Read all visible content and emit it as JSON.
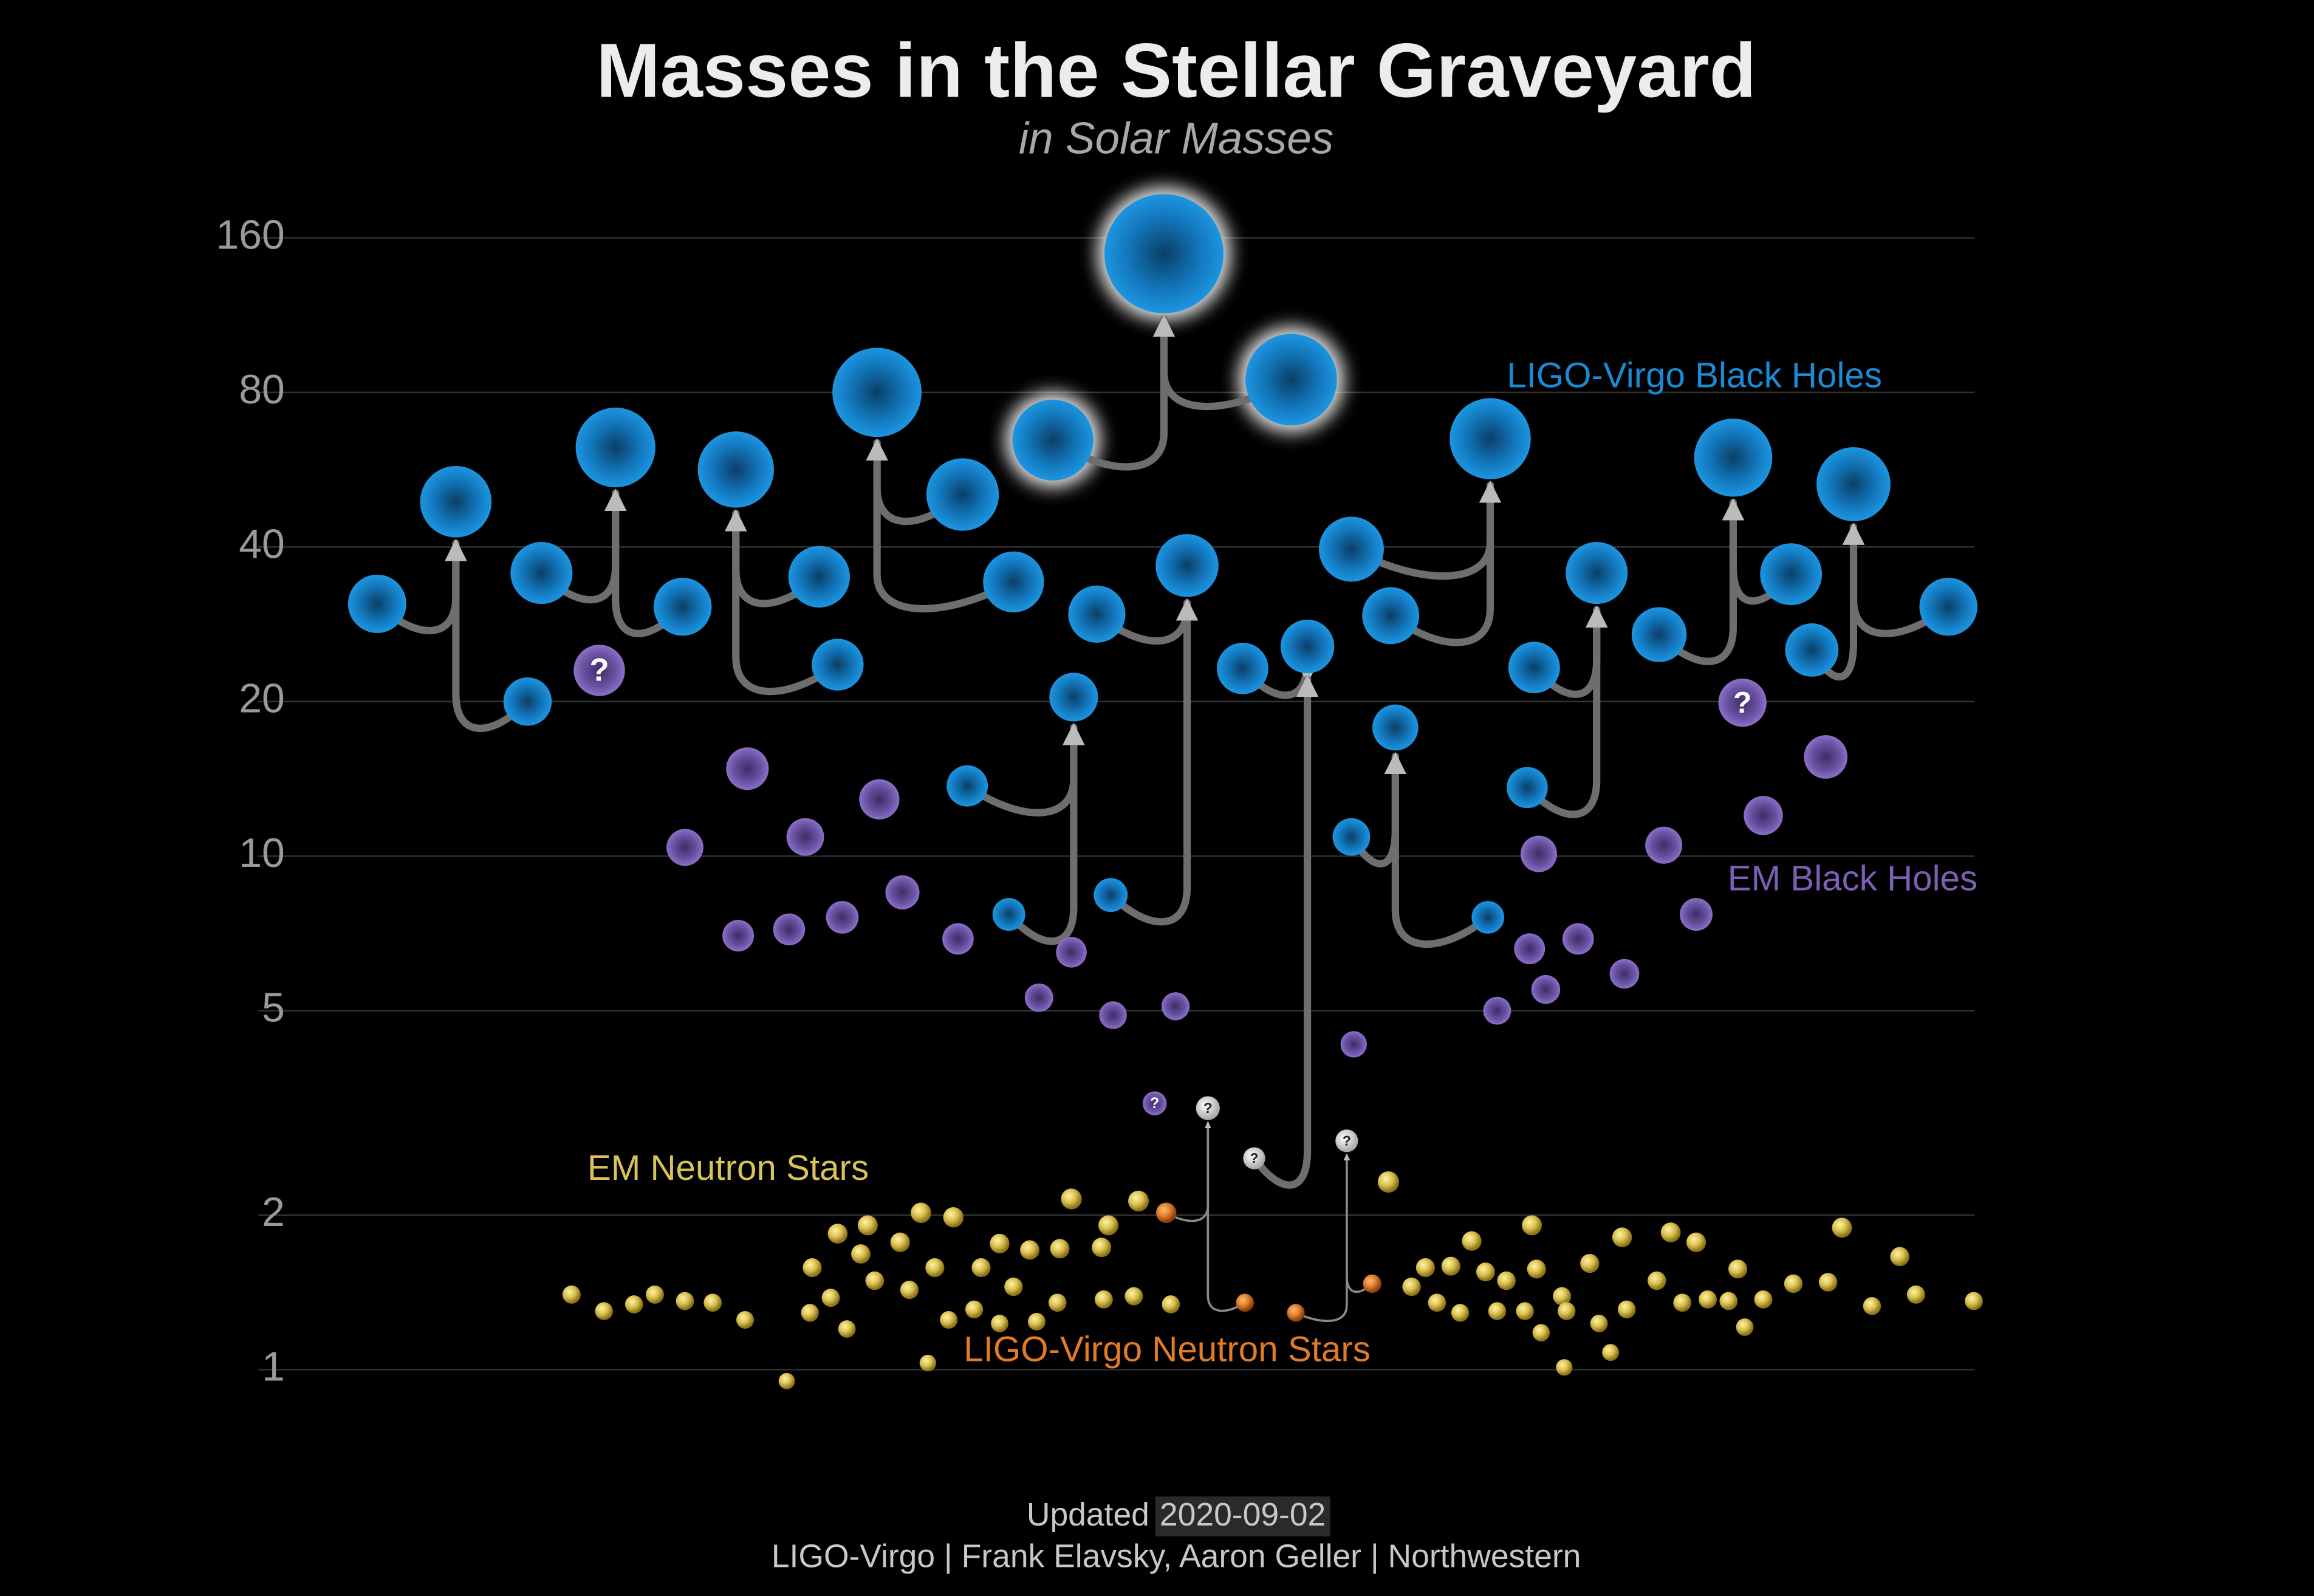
{
  "chart_data": {
    "type": "scatter",
    "title": "Masses in the Stellar Graveyard",
    "subtitle": "in Solar Masses",
    "log_y": true,
    "grid": true,
    "xlim": [
      0,
      100
    ],
    "ylim": [
      0.75,
      220
    ],
    "yticks": [
      1,
      2,
      5,
      10,
      20,
      40,
      80,
      160
    ],
    "uncertain_label": "?",
    "series": [
      {
        "name": "LIGO-Virgo Black Holes",
        "color": "#1a8ad4",
        "x": [
          16.3,
          22.8,
          19.7,
          23.4,
          29.5,
          26.6,
          35.4,
          36.2,
          31.8,
          41.6,
          43.8,
          37.9,
          45.5,
          55.8,
          50.3,
          47.4,
          48.0,
          51.3,
          41.8,
          43.6,
          46.4,
          53.7,
          56.5,
          58.4,
          60.1,
          64.4,
          58.4,
          64.3,
          60.3,
          66.3,
          66.0,
          69.0,
          71.7,
          77.4,
          74.9,
          78.3,
          84.2,
          80.1
        ],
        "values": [
          31,
          20,
          49,
          35.6,
          30.6,
          62.5,
          35,
          23.6,
          56.6,
          50.6,
          34.2,
          80,
          64.6,
          84.7,
          149,
          29.6,
          8.4,
          36.8,
          13.7,
          7.7,
          20.4,
          23.2,
          25.6,
          39.6,
          29.4,
          65,
          10.9,
          7.6,
          17.8,
          23.3,
          13.6,
          35.6,
          27,
          35.4,
          59.7,
          25.2,
          30.6,
          53
        ]
      },
      {
        "name": "EM Black Holes",
        "color": "#7a5fb4",
        "x": [
          29.6,
          32.3,
          31.9,
          34.1,
          34.8,
          36.4,
          38.0,
          39.0,
          41.4,
          44.9,
          46.3,
          48.1,
          50.8,
          58.5,
          64.7,
          66.1,
          66.8,
          66.5,
          68.2,
          70.2,
          71.9,
          73.3,
          76.2,
          78.9,
          25.9,
          75.3,
          49.9
        ],
        "values": [
          10.4,
          14.8,
          7.0,
          7.2,
          10.9,
          7.6,
          12.9,
          8.5,
          6.9,
          5.3,
          6.5,
          4.9,
          5.1,
          4.3,
          5.0,
          6.6,
          5.5,
          10.1,
          6.9,
          5.9,
          10.5,
          7.7,
          12.0,
          15.6,
          23,
          19.9,
          3.3
        ],
        "uncertain": [
          24,
          25,
          26
        ]
      },
      {
        "name": "EM Neutron Stars",
        "color": "#d9c25a",
        "x": [
          24.7,
          26.1,
          27.4,
          28.3,
          29.6,
          30.8,
          32.2,
          34.0,
          35.0,
          35.1,
          35.9,
          36.2,
          36.6,
          37.2,
          37.5,
          37.8,
          38.9,
          39.3,
          39.8,
          40.1,
          40.4,
          41.0,
          41.2,
          42.1,
          42.4,
          43.2,
          43.2,
          43.8,
          44.5,
          44.8,
          45.7,
          45.8,
          46.3,
          47.6,
          47.7,
          47.9,
          49.0,
          49.2,
          50.6,
          60.0,
          61.0,
          61.6,
          62.1,
          62.7,
          63.1,
          63.6,
          64.2,
          64.7,
          65.1,
          65.9,
          66.2,
          66.4,
          66.6,
          67.5,
          67.6,
          67.7,
          68.7,
          69.1,
          69.6,
          70.3,
          70.1,
          71.6,
          72.2,
          72.7,
          73.3,
          73.8,
          74.7,
          75.1,
          75.4,
          76.2,
          77.5,
          79.0,
          79.6,
          80.9,
          82.1,
          82.8,
          85.3
        ],
        "values": [
          1.4,
          1.3,
          1.34,
          1.4,
          1.36,
          1.35,
          1.25,
          0.95,
          1.29,
          1.58,
          1.38,
          1.84,
          1.2,
          1.68,
          1.91,
          1.49,
          1.77,
          1.43,
          2.02,
          1.03,
          1.58,
          1.25,
          1.98,
          1.31,
          1.58,
          1.76,
          1.23,
          1.45,
          1.71,
          1.24,
          1.35,
          1.72,
          2.15,
          1.73,
          1.37,
          1.91,
          1.39,
          2.13,
          1.34,
          2.32,
          1.45,
          1.58,
          1.35,
          1.59,
          1.29,
          1.78,
          1.55,
          1.3,
          1.49,
          1.3,
          1.91,
          1.57,
          1.18,
          1.39,
          1.01,
          1.3,
          1.61,
          1.23,
          1.08,
          1.31,
          1.81,
          1.49,
          1.85,
          1.35,
          1.77,
          1.37,
          1.36,
          1.57,
          1.21,
          1.37,
          1.47,
          1.48,
          1.89,
          1.33,
          1.66,
          1.4,
          1.36
        ]
      },
      {
        "name": "LIGO-Virgo Neutron Stars",
        "color": "#e07b28",
        "x": [
          50.4,
          53.8,
          56.0,
          59.3
        ],
        "values": [
          2.02,
          1.35,
          1.29,
          1.47
        ]
      },
      {
        "color": "#e6e6e6",
        "x": [
          52.2,
          54.2,
          58.2
        ],
        "values": [
          3.23,
          2.58,
          2.79
        ],
        "uncertain": [
          0,
          1,
          2
        ]
      }
    ],
    "mergers": [
      {
        "parts": [
          [
            0,
            0
          ],
          [
            0,
            1
          ],
          [
            0,
            2
          ]
        ]
      },
      {
        "parts": [
          [
            0,
            3
          ],
          [
            0,
            4
          ],
          [
            0,
            5
          ]
        ]
      },
      {
        "parts": [
          [
            0,
            6
          ],
          [
            0,
            7
          ],
          [
            0,
            8
          ]
        ]
      },
      {
        "parts": [
          [
            0,
            9
          ],
          [
            0,
            10
          ],
          [
            0,
            11
          ]
        ]
      },
      {
        "parts": [
          [
            0,
            12
          ],
          [
            0,
            13
          ],
          [
            0,
            14
          ]
        ],
        "highlight": true
      },
      {
        "parts": [
          [
            0,
            15
          ],
          [
            0,
            16
          ],
          [
            0,
            17
          ]
        ]
      },
      {
        "parts": [
          [
            0,
            18
          ],
          [
            0,
            19
          ],
          [
            0,
            20
          ]
        ]
      },
      {
        "parts": [
          [
            0,
            21
          ],
          [
            4,
            1
          ],
          [
            0,
            22
          ]
        ]
      },
      {
        "parts": [
          [
            0,
            23
          ],
          [
            0,
            24
          ],
          [
            0,
            25
          ]
        ]
      },
      {
        "parts": [
          [
            0,
            26
          ],
          [
            0,
            27
          ],
          [
            0,
            28
          ]
        ]
      },
      {
        "parts": [
          [
            0,
            29
          ],
          [
            0,
            30
          ],
          [
            0,
            31
          ]
        ]
      },
      {
        "parts": [
          [
            0,
            32
          ],
          [
            0,
            33
          ],
          [
            0,
            34
          ]
        ]
      },
      {
        "parts": [
          [
            0,
            35
          ],
          [
            0,
            36
          ],
          [
            0,
            37
          ]
        ]
      },
      {
        "parts": [
          [
            3,
            0
          ],
          [
            3,
            1
          ],
          [
            4,
            0
          ]
        ]
      },
      {
        "parts": [
          [
            3,
            2
          ],
          [
            3,
            3
          ],
          [
            4,
            2
          ]
        ]
      }
    ],
    "update_label": "Updated",
    "date": "2020-09-02",
    "credit": "LIGO-Virgo | Frank Elavsky, Aaron Geller | Northwestern"
  }
}
